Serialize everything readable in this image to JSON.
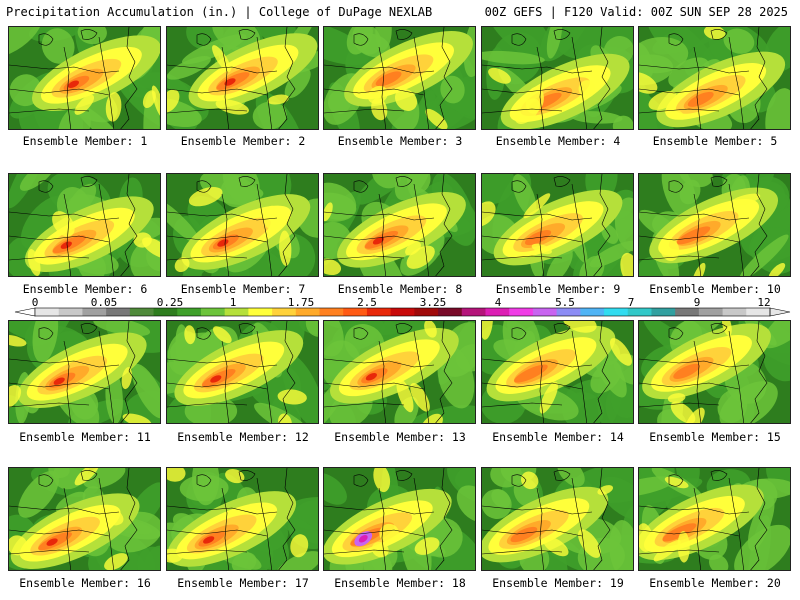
{
  "header": {
    "title_left": "Precipitation Accumulation (in.) | College of DuPage NEXLAB",
    "title_right": "00Z GEFS | F120 Valid: 00Z SUN SEP 28 2025"
  },
  "members": [
    {
      "label": "Ensemble Member: 1"
    },
    {
      "label": "Ensemble Member: 2"
    },
    {
      "label": "Ensemble Member: 3"
    },
    {
      "label": "Ensemble Member: 4"
    },
    {
      "label": "Ensemble Member: 5"
    },
    {
      "label": "Ensemble Member: 6"
    },
    {
      "label": "Ensemble Member: 7"
    },
    {
      "label": "Ensemble Member: 8"
    },
    {
      "label": "Ensemble Member: 9"
    },
    {
      "label": "Ensemble Member: 10"
    },
    {
      "label": "Ensemble Member: 11"
    },
    {
      "label": "Ensemble Member: 12"
    },
    {
      "label": "Ensemble Member: 13"
    },
    {
      "label": "Ensemble Member: 14"
    },
    {
      "label": "Ensemble Member: 15"
    },
    {
      "label": "Ensemble Member: 16"
    },
    {
      "label": "Ensemble Member: 17"
    },
    {
      "label": "Ensemble Member: 18"
    },
    {
      "label": "Ensemble Member: 19"
    },
    {
      "label": "Ensemble Member: 20"
    }
  ],
  "colorbar": {
    "tick_labels": [
      "0",
      "0.05",
      "0.25",
      "1",
      "1.75",
      "2.5",
      "3.25",
      "4",
      "5.5",
      "7",
      "9",
      "12"
    ],
    "colors": [
      "#e6e6e6",
      "#c8c8c8",
      "#a0a0a0",
      "#787878",
      "#4f8a3a",
      "#2e7d1e",
      "#3fa02a",
      "#6cc43a",
      "#b5e03a",
      "#ffff3a",
      "#ffd23a",
      "#ffaa2a",
      "#ff8020",
      "#ff5a14",
      "#e8280a",
      "#c80a0a",
      "#a00a0a",
      "#780a28",
      "#b4147a",
      "#dc1eb4",
      "#f03ce6",
      "#c864f0",
      "#8c8cf5",
      "#50b4f5",
      "#32dcf0",
      "#32c8c8",
      "#32a0a0",
      "#787878",
      "#a0a0a0",
      "#c8c8c8",
      "#e6e6e6"
    ]
  }
}
